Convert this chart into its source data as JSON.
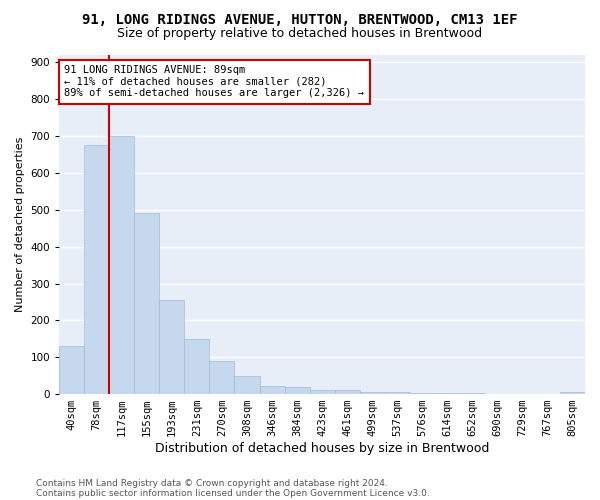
{
  "title": "91, LONG RIDINGS AVENUE, HUTTON, BRENTWOOD, CM13 1EF",
  "subtitle": "Size of property relative to detached houses in Brentwood",
  "xlabel": "Distribution of detached houses by size in Brentwood",
  "ylabel": "Number of detached properties",
  "bar_color": "#c5d8ee",
  "bar_edge_color": "#a0bcd8",
  "categories": [
    "40sqm",
    "78sqm",
    "117sqm",
    "155sqm",
    "193sqm",
    "231sqm",
    "270sqm",
    "308sqm",
    "346sqm",
    "384sqm",
    "423sqm",
    "461sqm",
    "499sqm",
    "537sqm",
    "576sqm",
    "614sqm",
    "652sqm",
    "690sqm",
    "729sqm",
    "767sqm",
    "805sqm"
  ],
  "values": [
    130,
    675,
    700,
    490,
    255,
    150,
    90,
    50,
    22,
    18,
    10,
    10,
    7,
    5,
    3,
    2,
    2,
    1,
    1,
    1,
    5
  ],
  "ylim": [
    0,
    920
  ],
  "yticks": [
    0,
    100,
    200,
    300,
    400,
    500,
    600,
    700,
    800,
    900
  ],
  "property_bar_index": 1,
  "vline_color": "#cc0000",
  "annotation_text": "91 LONG RIDINGS AVENUE: 89sqm\n← 11% of detached houses are smaller (282)\n89% of semi-detached houses are larger (2,326) →",
  "annotation_box_color": "#ffffff",
  "annotation_box_edge_color": "#cc0000",
  "footer_line1": "Contains HM Land Registry data © Crown copyright and database right 2024.",
  "footer_line2": "Contains public sector information licensed under the Open Government Licence v3.0.",
  "plot_bg_color": "#e8eef8",
  "fig_bg_color": "#ffffff",
  "grid_color": "#ffffff",
  "title_fontsize": 10,
  "subtitle_fontsize": 9,
  "xlabel_fontsize": 9,
  "ylabel_fontsize": 8,
  "tick_fontsize": 7.5,
  "annot_fontsize": 7.5,
  "footer_fontsize": 6.5
}
